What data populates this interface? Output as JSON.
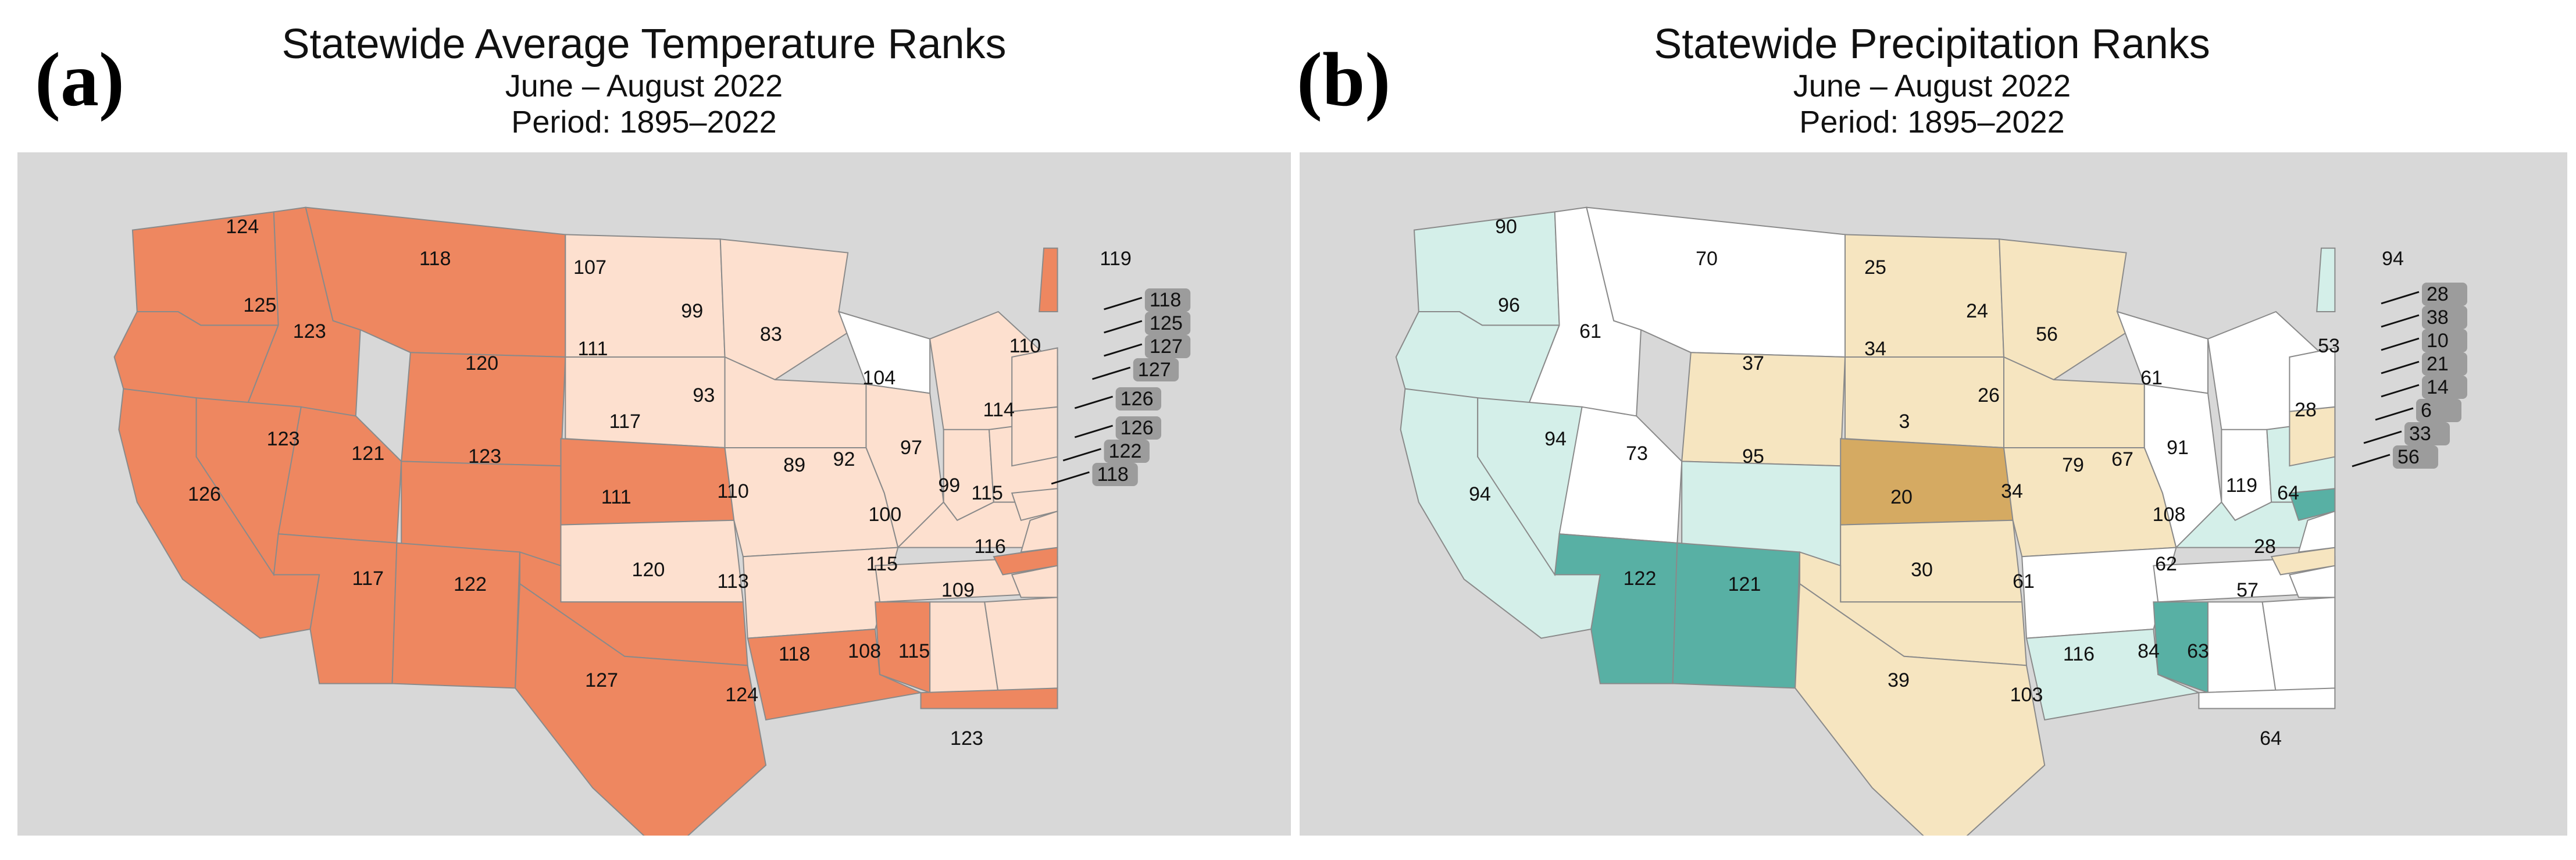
{
  "panels": [
    {
      "id": "a",
      "label": "(a)",
      "title": "Statewide Average Temperature Ranks",
      "subtitle": "June – August 2022",
      "period": "Period: 1895–2022",
      "colors": {
        "hot": "#ee8760",
        "warm": "#fde0cf",
        "normal": "#ffffff",
        "water": "#a9a9a9",
        "land": "#d8d8d8"
      },
      "states": [
        {
          "s": "WA",
          "v": "124",
          "c": "hot"
        },
        {
          "s": "OR",
          "v": "125",
          "c": "hot"
        },
        {
          "s": "ID",
          "v": "123",
          "c": "hot"
        },
        {
          "s": "MT",
          "v": "118",
          "c": "hot"
        },
        {
          "s": "WY",
          "v": "120",
          "c": "hot"
        },
        {
          "s": "CA",
          "v": "126",
          "c": "hot"
        },
        {
          "s": "NV",
          "v": "123",
          "c": "hot"
        },
        {
          "s": "UT",
          "v": "121",
          "c": "hot"
        },
        {
          "s": "CO",
          "v": "123",
          "c": "hot"
        },
        {
          "s": "AZ",
          "v": "117",
          "c": "hot"
        },
        {
          "s": "NM",
          "v": "122",
          "c": "hot"
        },
        {
          "s": "ND",
          "v": "107",
          "c": "warm"
        },
        {
          "s": "SD",
          "v": "111",
          "c": "warm"
        },
        {
          "s": "NE",
          "v": "117",
          "c": "hot"
        },
        {
          "s": "KS",
          "v": "111",
          "c": "warm"
        },
        {
          "s": "OK",
          "v": "120",
          "c": "hot"
        },
        {
          "s": "TX",
          "v": "127",
          "c": "hot"
        },
        {
          "s": "MN",
          "v": "99",
          "c": "warm"
        },
        {
          "s": "IA",
          "v": "93",
          "c": "warm"
        },
        {
          "s": "MO",
          "v": "110",
          "c": "warm"
        },
        {
          "s": "AR",
          "v": "113",
          "c": "warm"
        },
        {
          "s": "LA",
          "v": "124",
          "c": "hot"
        },
        {
          "s": "WI",
          "v": "83",
          "c": "normal"
        },
        {
          "s": "IL",
          "v": "89",
          "c": "warm"
        },
        {
          "s": "MI",
          "v": "104",
          "c": "warm"
        },
        {
          "s": "IN",
          "v": "92",
          "c": "warm"
        },
        {
          "s": "OH",
          "v": "97",
          "c": "warm"
        },
        {
          "s": "KY",
          "v": "100",
          "c": "warm"
        },
        {
          "s": "TN",
          "v": "115",
          "c": "warm"
        },
        {
          "s": "MS",
          "v": "118",
          "c": "hot"
        },
        {
          "s": "AL",
          "v": "108",
          "c": "warm"
        },
        {
          "s": "GA",
          "v": "115",
          "c": "warm"
        },
        {
          "s": "FL",
          "v": "123",
          "c": "hot"
        },
        {
          "s": "SC",
          "v": "109",
          "c": "warm"
        },
        {
          "s": "NC",
          "v": "116",
          "c": "hot"
        },
        {
          "s": "VA",
          "v": "115",
          "c": "warm"
        },
        {
          "s": "WV",
          "v": "99",
          "c": "warm"
        },
        {
          "s": "PA",
          "v": "114",
          "c": "warm"
        },
        {
          "s": "NY",
          "v": "110",
          "c": "warm"
        },
        {
          "s": "ME",
          "v": "119",
          "c": "hot"
        }
      ],
      "callouts": [
        {
          "s": "VT",
          "v": "118",
          "c": "hot"
        },
        {
          "s": "NH",
          "v": "125",
          "c": "hot"
        },
        {
          "s": "MA",
          "v": "127",
          "c": "hot"
        },
        {
          "s": "RI",
          "v": "127",
          "c": "hot"
        },
        {
          "s": "CT",
          "v": "126",
          "c": "hot"
        },
        {
          "s": "NJ",
          "v": "126",
          "c": "hot"
        },
        {
          "s": "DE",
          "v": "122",
          "c": "hot"
        },
        {
          "s": "MD",
          "v": "118",
          "c": "hot"
        }
      ]
    },
    {
      "id": "b",
      "label": "(b)",
      "title": "Statewide Precipitation Ranks",
      "subtitle": "June – August 2022",
      "period": "Period: 1895–2022",
      "colors": {
        "wet2": "#58b0a4",
        "wet1": "#d4efe9",
        "normal": "#ffffff",
        "dry1": "#f6e5c0",
        "dry2": "#d5aa62",
        "water": "#a9a9a9",
        "land": "#d8d8d8"
      },
      "states": [
        {
          "s": "WA",
          "v": "90",
          "c": "wet1"
        },
        {
          "s": "OR",
          "v": "96",
          "c": "wet1"
        },
        {
          "s": "ID",
          "v": "61",
          "c": "normal"
        },
        {
          "s": "MT",
          "v": "70",
          "c": "normal"
        },
        {
          "s": "WY",
          "v": "37",
          "c": "dry1"
        },
        {
          "s": "CA",
          "v": "94",
          "c": "wet1"
        },
        {
          "s": "NV",
          "v": "94",
          "c": "wet1"
        },
        {
          "s": "UT",
          "v": "73",
          "c": "normal"
        },
        {
          "s": "CO",
          "v": "95",
          "c": "wet1"
        },
        {
          "s": "AZ",
          "v": "122",
          "c": "wet2"
        },
        {
          "s": "NM",
          "v": "121",
          "c": "wet2"
        },
        {
          "s": "ND",
          "v": "25",
          "c": "dry1"
        },
        {
          "s": "SD",
          "v": "34",
          "c": "dry1"
        },
        {
          "s": "NE",
          "v": "3",
          "c": "dry2"
        },
        {
          "s": "KS",
          "v": "20",
          "c": "dry1"
        },
        {
          "s": "OK",
          "v": "30",
          "c": "dry1"
        },
        {
          "s": "TX",
          "v": "39",
          "c": "dry1"
        },
        {
          "s": "MN",
          "v": "24",
          "c": "dry1"
        },
        {
          "s": "IA",
          "v": "26",
          "c": "dry1"
        },
        {
          "s": "MO",
          "v": "34",
          "c": "dry1"
        },
        {
          "s": "AR",
          "v": "61",
          "c": "normal"
        },
        {
          "s": "LA",
          "v": "103",
          "c": "wet1"
        },
        {
          "s": "WI",
          "v": "56",
          "c": "normal"
        },
        {
          "s": "IL",
          "v": "79",
          "c": "normal"
        },
        {
          "s": "MI",
          "v": "61",
          "c": "normal"
        },
        {
          "s": "IN",
          "v": "67",
          "c": "normal"
        },
        {
          "s": "OH",
          "v": "91",
          "c": "wet1"
        },
        {
          "s": "KY",
          "v": "108",
          "c": "wet1"
        },
        {
          "s": "TN",
          "v": "62",
          "c": "normal"
        },
        {
          "s": "MS",
          "v": "116",
          "c": "wet2"
        },
        {
          "s": "AL",
          "v": "84",
          "c": "normal"
        },
        {
          "s": "GA",
          "v": "63",
          "c": "normal"
        },
        {
          "s": "FL",
          "v": "64",
          "c": "normal"
        },
        {
          "s": "SC",
          "v": "57",
          "c": "normal"
        },
        {
          "s": "NC",
          "v": "28",
          "c": "dry1"
        },
        {
          "s": "VA",
          "v": "64",
          "c": "normal"
        },
        {
          "s": "WV",
          "v": "119",
          "c": "wet2"
        },
        {
          "s": "PA",
          "v": "28",
          "c": "dry1"
        },
        {
          "s": "NY",
          "v": "53",
          "c": "normal"
        },
        {
          "s": "ME",
          "v": "94",
          "c": "wet1"
        }
      ],
      "callouts": [
        {
          "s": "VT",
          "v": "28",
          "c": "dry1"
        },
        {
          "s": "NH",
          "v": "38",
          "c": "dry1"
        },
        {
          "s": "MA",
          "v": "10",
          "c": "dry2"
        },
        {
          "s": "RI",
          "v": "21",
          "c": "dry1"
        },
        {
          "s": "CT",
          "v": "14",
          "c": "dry1"
        },
        {
          "s": "NJ",
          "v": "6",
          "c": "dry2"
        },
        {
          "s": "DE",
          "v": "33",
          "c": "dry1"
        },
        {
          "s": "MD",
          "v": "56",
          "c": "normal"
        }
      ]
    }
  ]
}
